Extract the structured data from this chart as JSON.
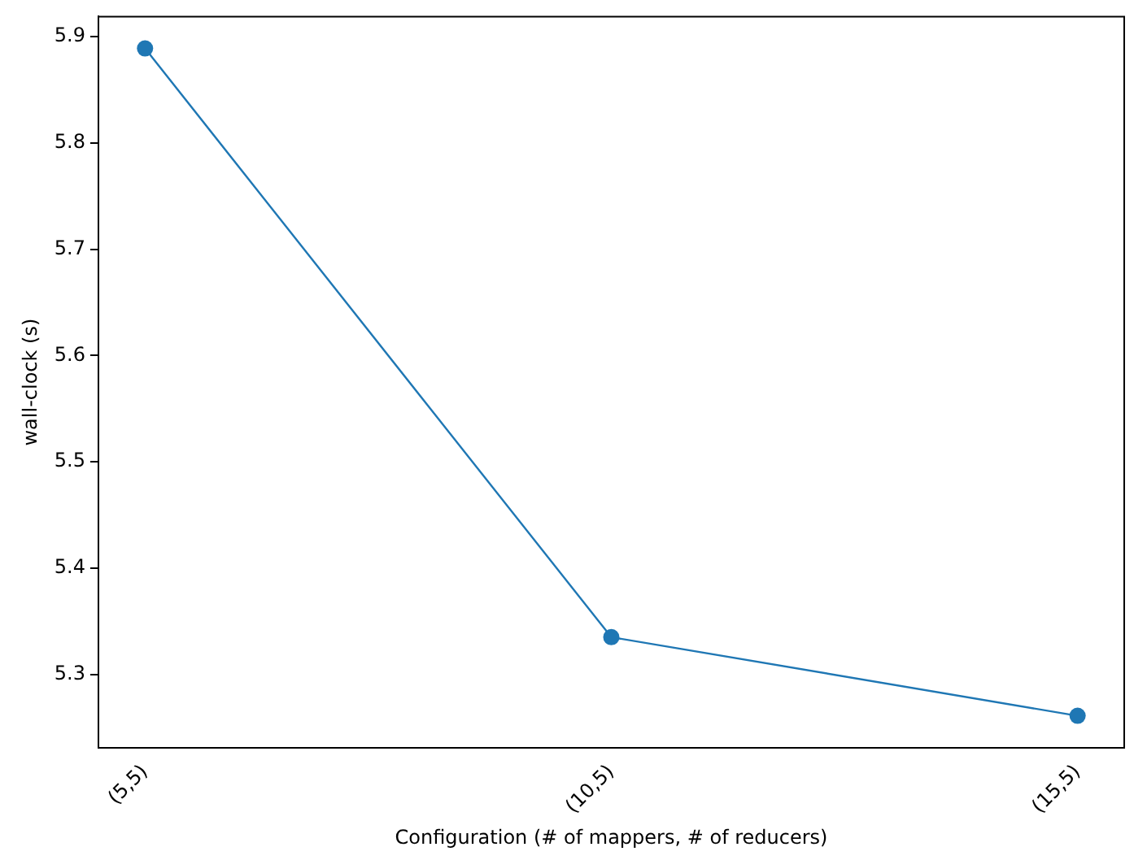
{
  "chart_data": {
    "type": "line",
    "xlabel": "Configuration (# of mappers, # of reducers)",
    "ylabel": "wall-clock (s)",
    "categories": [
      "(5,5)",
      "(10,5)",
      "(15,5)"
    ],
    "series": [
      {
        "color": "#1f77b4",
        "values": [
          5.889,
          5.335,
          5.261
        ]
      }
    ],
    "ylim": [
      5.231,
      5.919
    ],
    "yticks": [
      5.3,
      5.4,
      5.5,
      5.6,
      5.7,
      5.8,
      5.9
    ],
    "grid": false,
    "legend": false,
    "marker": "circle",
    "line_style": "solid"
  }
}
